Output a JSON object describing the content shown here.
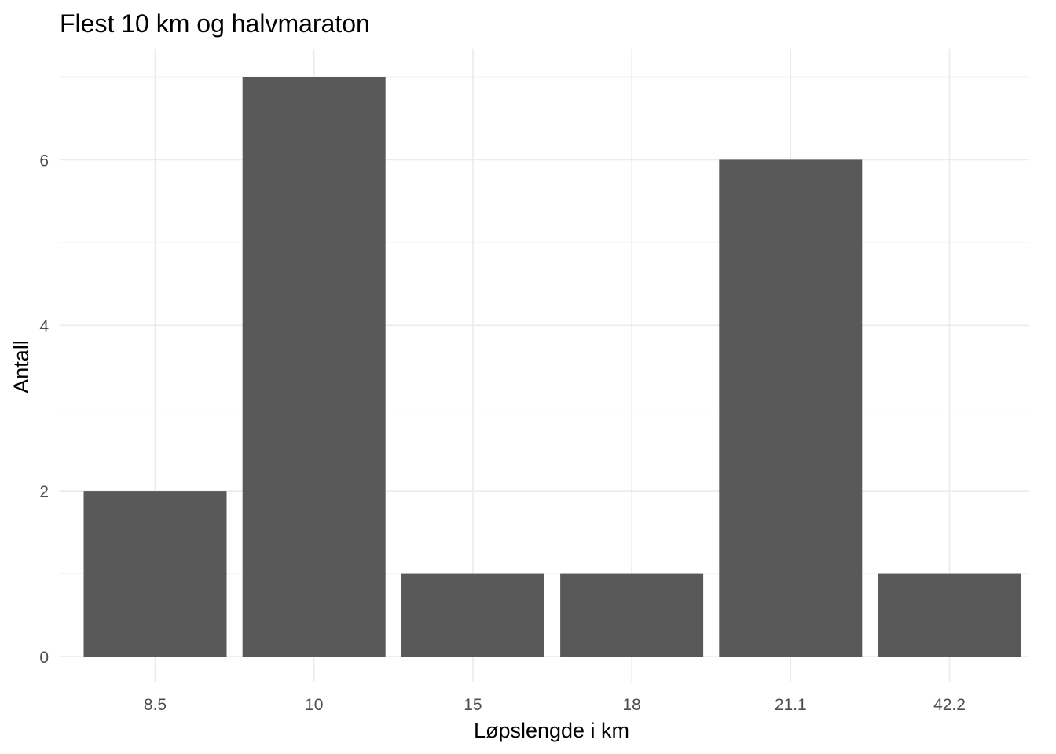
{
  "chart_data": {
    "type": "bar",
    "title": "Flest 10 km og halvmaraton",
    "xlabel": "Løpslengde i km",
    "ylabel": "Antall",
    "categories": [
      "8.5",
      "10",
      "15",
      "18",
      "21.1",
      "42.2"
    ],
    "values": [
      2,
      7,
      1,
      1,
      6,
      1
    ],
    "ylim": [
      0,
      7.35
    ],
    "yticks": [
      0,
      2,
      4,
      6
    ],
    "yticks_minor": [
      1,
      3,
      5,
      7
    ],
    "grid": true,
    "legend": "none",
    "colors": {
      "bar": "#595959",
      "grid_major": "#ebebeb",
      "grid_minor": "#f2f2f2",
      "tick_text": "#4d4d4d",
      "background": "#ffffff"
    }
  }
}
